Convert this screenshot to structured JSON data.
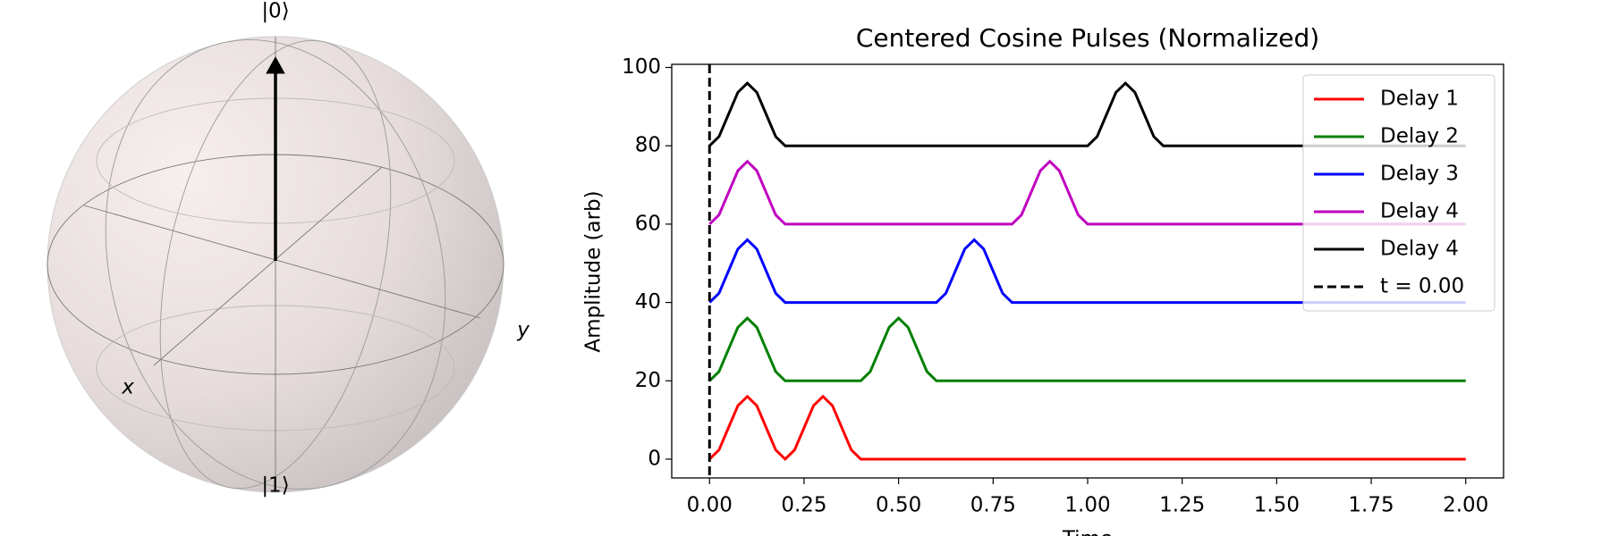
{
  "bloch": {
    "labels": {
      "top": "|0⟩",
      "bottom": "|1⟩",
      "x": "x",
      "y": "y"
    }
  },
  "chart_data": {
    "type": "line",
    "title": "Centered Cosine Pulses (Normalized)",
    "x_label": "Time",
    "y_label": "Amplitude (arb)",
    "x": [
      0,
      0.025,
      0.05,
      0.075,
      0.1,
      0.125,
      0.15,
      0.175,
      0.2,
      0.225,
      0.25,
      0.275,
      0.3,
      0.325,
      0.35,
      0.375,
      0.4,
      0.425,
      0.45,
      0.475,
      0.5,
      0.525,
      0.55,
      0.575,
      0.6,
      0.625,
      0.65,
      0.675,
      0.7,
      0.725,
      0.75,
      0.775,
      0.8,
      0.825,
      0.85,
      0.875,
      0.9,
      0.925,
      0.95,
      0.975,
      1.0,
      1.025,
      1.05,
      1.075,
      1.1,
      1.125,
      1.15,
      1.175,
      1.2,
      2.0
    ],
    "series": [
      {
        "name": "Delay 1",
        "color": "#ff0000",
        "values": [
          0,
          2.34,
          8,
          13.66,
          16,
          13.66,
          8,
          2.34,
          0,
          2.34,
          8,
          13.66,
          16,
          13.66,
          8,
          2.34,
          0,
          0,
          0,
          0,
          0,
          0,
          0,
          0,
          0,
          0,
          0,
          0,
          0,
          0,
          0,
          0,
          0,
          0,
          0,
          0,
          0,
          0,
          0,
          0,
          0,
          0,
          0,
          0,
          0,
          0,
          0,
          0,
          0,
          0
        ]
      },
      {
        "name": "Delay 2",
        "color": "#008000",
        "values": [
          20,
          22.34,
          28,
          33.66,
          36,
          33.66,
          28,
          22.34,
          20,
          20,
          20,
          20,
          20,
          20,
          20,
          20,
          20,
          22.34,
          28,
          33.66,
          36,
          33.66,
          28,
          22.34,
          20,
          20,
          20,
          20,
          20,
          20,
          20,
          20,
          20,
          20,
          20,
          20,
          20,
          20,
          20,
          20,
          20,
          20,
          20,
          20,
          20,
          20,
          20,
          20,
          20,
          20
        ]
      },
      {
        "name": "Delay 3",
        "color": "#0000ff",
        "values": [
          40,
          42.34,
          48,
          53.66,
          56,
          53.66,
          48,
          42.34,
          40,
          40,
          40,
          40,
          40,
          40,
          40,
          40,
          40,
          40,
          40,
          40,
          40,
          40,
          40,
          40,
          40,
          42.34,
          48,
          53.66,
          56,
          53.66,
          48,
          42.34,
          40,
          40,
          40,
          40,
          40,
          40,
          40,
          40,
          40,
          40,
          40,
          40,
          40,
          40,
          40,
          40,
          40,
          40
        ]
      },
      {
        "name": "Delay 4",
        "color": "#bf00bf",
        "values": [
          60,
          62.34,
          68,
          73.66,
          76,
          73.66,
          68,
          62.34,
          60,
          60,
          60,
          60,
          60,
          60,
          60,
          60,
          60,
          60,
          60,
          60,
          60,
          60,
          60,
          60,
          60,
          60,
          60,
          60,
          60,
          60,
          60,
          60,
          60,
          62.34,
          68,
          73.66,
          76,
          73.66,
          68,
          62.34,
          60,
          60,
          60,
          60,
          60,
          60,
          60,
          60,
          60,
          60
        ]
      },
      {
        "name": "Delay 4",
        "color": "#000000",
        "values": [
          80,
          82.34,
          88,
          93.66,
          96,
          93.66,
          88,
          82.34,
          80,
          80,
          80,
          80,
          80,
          80,
          80,
          80,
          80,
          80,
          80,
          80,
          80,
          80,
          80,
          80,
          80,
          80,
          80,
          80,
          80,
          80,
          80,
          80,
          80,
          80,
          80,
          80,
          80,
          80,
          80,
          80,
          80,
          82.34,
          88,
          93.66,
          96,
          93.66,
          88,
          82.34,
          80,
          80
        ]
      }
    ],
    "vline": {
      "name": "t = 0.00",
      "value": 0,
      "color": "#000000"
    },
    "xlim": [
      -0.1,
      2.1
    ],
    "ylim": [
      -4.8,
      100.8
    ],
    "xticks": [
      {
        "value": 0,
        "label": "0.00"
      },
      {
        "value": 0.25,
        "label": "0.25"
      },
      {
        "value": 0.5,
        "label": "0.50"
      },
      {
        "value": 0.75,
        "label": "0.75"
      },
      {
        "value": 1,
        "label": "1.00"
      },
      {
        "value": 1.25,
        "label": "1.25"
      },
      {
        "value": 1.5,
        "label": "1.50"
      },
      {
        "value": 1.75,
        "label": "1.75"
      },
      {
        "value": 2,
        "label": "2.00"
      }
    ],
    "yticks": [
      0,
      20,
      40,
      60,
      80,
      100
    ],
    "legend": "upper right"
  }
}
